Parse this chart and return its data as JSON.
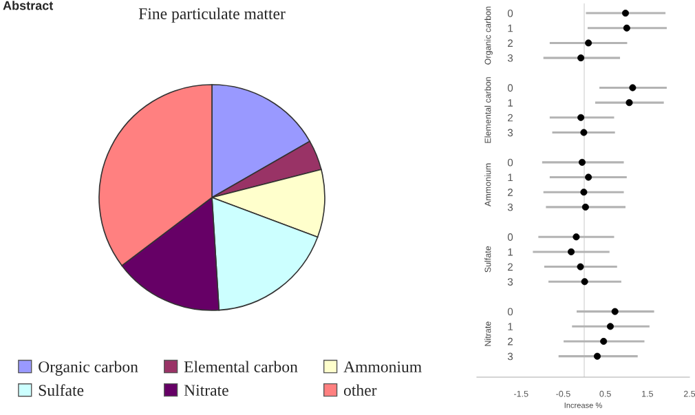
{
  "chart_data": [
    {
      "type": "pie",
      "title": "Fine particulate matter",
      "annotations": [
        "Abstract"
      ],
      "legend": "bottom",
      "categories": [
        "Organic carbon",
        "Elemental carbon",
        "Ammonium",
        "Sulfate",
        "Nitrate",
        "other"
      ],
      "values": [
        16.7,
        4.3,
        9.7,
        18.3,
        15.7,
        35.3
      ],
      "colors": [
        "#9999ff",
        "#993366",
        "#ffffcc",
        "#ccffff",
        "#660066",
        "#ff8080"
      ]
    },
    {
      "type": "scatter",
      "orientation": "horizontal",
      "xlabel": "Increase %",
      "marker": "circle",
      "categories": [
        "0",
        "1",
        "2",
        "3",
        null,
        "0",
        "1",
        "2",
        "3",
        null,
        "0",
        "1",
        "2",
        "3",
        null,
        "0",
        "1",
        "2",
        "3",
        null,
        "0",
        "1",
        "2",
        "3"
      ],
      "xlim": [
        -2.55,
        2.5
      ],
      "xticks": [
        -1.5,
        -0.5,
        0.5,
        1.5,
        2.5
      ],
      "ref_lines": [
        {
          "axis": "x",
          "value": 0,
          "color": "#d9d9d9"
        }
      ],
      "annotations": [
        "Organic carbon",
        "Elemental carbon",
        "Ammonium",
        "Sulfate",
        "Nitrate"
      ],
      "series": [
        {
          "color": "#000000",
          "values": [
            0.98,
            1.01,
            0.1,
            -0.08,
            null,
            null,
            null,
            null,
            null,
            null,
            null,
            null,
            null,
            null,
            null,
            null,
            null,
            null,
            null,
            null,
            null,
            null,
            null,
            null
          ],
          "errors": [
            [
              0.04,
              1.93
            ],
            [
              0.08,
              1.96
            ],
            [
              -0.82,
              1.02
            ],
            [
              -0.97,
              0.85
            ],
            null,
            null,
            null,
            null,
            null,
            null,
            null,
            null,
            null,
            null,
            null,
            null,
            null,
            null,
            null,
            null,
            null,
            null,
            null,
            null
          ]
        },
        {
          "color": "#000000",
          "values": [
            null,
            null,
            null,
            null,
            null,
            1.15,
            1.07,
            -0.08,
            -0.01,
            null,
            null,
            null,
            null,
            null,
            null,
            null,
            null,
            null,
            null,
            null,
            null,
            null,
            null,
            null
          ],
          "errors": [
            null,
            null,
            null,
            null,
            null,
            [
              0.36,
              1.96
            ],
            [
              0.26,
              1.89
            ],
            [
              -0.82,
              0.71
            ],
            [
              -0.76,
              0.73
            ],
            null,
            null,
            null,
            null,
            null,
            null,
            null,
            null,
            null,
            null,
            null,
            null,
            null,
            null,
            null
          ]
        },
        {
          "color": "#000000",
          "values": [
            null,
            null,
            null,
            null,
            null,
            null,
            null,
            null,
            null,
            null,
            -0.05,
            0.1,
            -0.01,
            0.03,
            null,
            null,
            null,
            null,
            null,
            null,
            null,
            null,
            null,
            null
          ],
          "errors": [
            null,
            null,
            null,
            null,
            null,
            null,
            null,
            null,
            null,
            null,
            [
              -1.0,
              0.94
            ],
            [
              -0.82,
              1.01
            ],
            [
              -0.97,
              0.94
            ],
            [
              -0.91,
              0.98
            ],
            null,
            null,
            null,
            null,
            null,
            null,
            null,
            null,
            null,
            null
          ]
        },
        {
          "color": "#000000",
          "values": [
            null,
            null,
            null,
            null,
            null,
            null,
            null,
            null,
            null,
            null,
            null,
            null,
            null,
            null,
            null,
            -0.19,
            -0.31,
            -0.09,
            0.01,
            null,
            null,
            null,
            null,
            null
          ],
          "errors": [
            null,
            null,
            null,
            null,
            null,
            null,
            null,
            null,
            null,
            null,
            null,
            null,
            null,
            null,
            null,
            [
              -1.09,
              0.71
            ],
            [
              -1.22,
              0.6
            ],
            [
              -0.95,
              0.78
            ],
            [
              -0.85,
              0.88
            ],
            null,
            null,
            null,
            null,
            null
          ]
        },
        {
          "color": "#000000",
          "values": [
            null,
            null,
            null,
            null,
            null,
            null,
            null,
            null,
            null,
            null,
            null,
            null,
            null,
            null,
            null,
            null,
            null,
            null,
            null,
            null,
            0.73,
            0.62,
            0.46,
            0.31
          ],
          "errors": [
            null,
            null,
            null,
            null,
            null,
            null,
            null,
            null,
            null,
            null,
            null,
            null,
            null,
            null,
            null,
            null,
            null,
            null,
            null,
            null,
            [
              -0.18,
              1.66
            ],
            [
              -0.29,
              1.55
            ],
            [
              -0.49,
              1.43
            ],
            [
              -0.61,
              1.27
            ]
          ]
        }
      ]
    }
  ]
}
